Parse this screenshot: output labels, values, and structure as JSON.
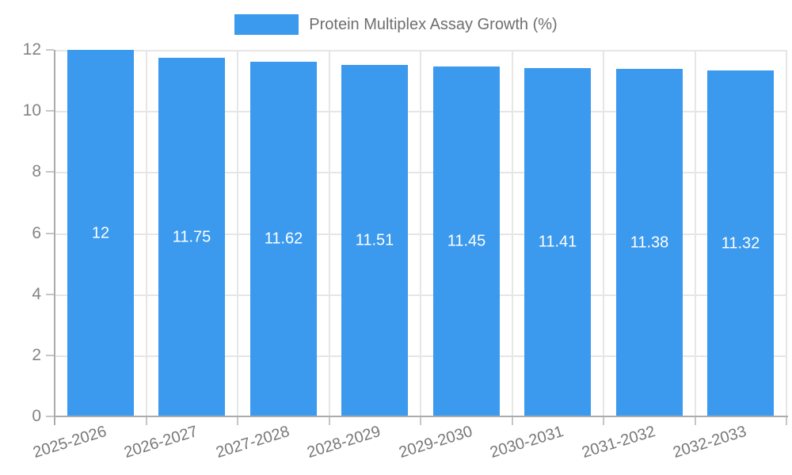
{
  "legend": {
    "label": "Protein Multiplex Assay Growth (%)"
  },
  "colors": {
    "bar": "#3B99EE",
    "grid": "#E6E6E6",
    "axis": "#ABABAB",
    "tick_mark": "#C6C6C6",
    "y_label_text": "#848484",
    "x_label_text": "#787878",
    "legend_text": "#6E6E6E",
    "value_label_text": "#FFFFFF",
    "background": "#FFFFFF"
  },
  "chart_data": {
    "type": "bar",
    "title": "Protein Multiplex Assay Growth (%)",
    "categories": [
      "2025-2026",
      "2026-2027",
      "2027-2028",
      "2028-2029",
      "2029-2030",
      "2030-2031",
      "2031-2032",
      "2032-2033"
    ],
    "values": [
      12,
      11.75,
      11.62,
      11.51,
      11.45,
      11.41,
      11.38,
      11.32
    ],
    "value_labels": [
      "12",
      "11.75",
      "11.62",
      "11.51",
      "11.45",
      "11.41",
      "11.38",
      "11.32"
    ],
    "xlabel": "",
    "ylabel": "",
    "ylim": [
      0,
      12
    ],
    "yticks": [
      0,
      2,
      4,
      6,
      8,
      10,
      12
    ],
    "grid": true,
    "legend_position": "top-center",
    "x_label_rotation_deg": -17,
    "value_label_position": "center-of-bar"
  }
}
